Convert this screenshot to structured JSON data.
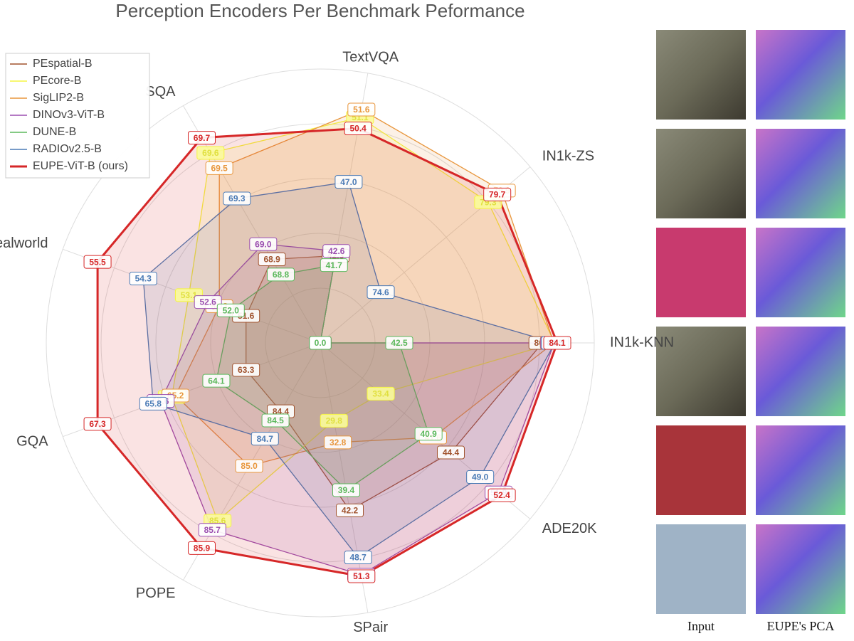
{
  "chart_data": {
    "type": "radar",
    "title": "Perception Encoders Per Benchmark Peformance",
    "legend": "top-left",
    "categories": [
      "TextVQA",
      "IN1k-ZS",
      "IN1k-KNN",
      "ADE20K",
      "SPair",
      "POPE",
      "GQA",
      "Realworld",
      "SQA"
    ],
    "series": [
      {
        "name": "PEspatial-B",
        "color": "#a0522d",
        "values": [
          42.3,
          0,
          80.2,
          44.4,
          42.2,
          84.4,
          63.3,
          51.6,
          68.9
        ],
        "value_labels": [
          "42.3",
          "0.0",
          "80.2",
          "44.4",
          "42.2",
          "84.4",
          "63.3",
          "51.6",
          "68.9"
        ]
      },
      {
        "name": "PEcore-B",
        "color": "#f5f542",
        "values": [
          51.1,
          79.3,
          83.4,
          33.4,
          29.8,
          85.6,
          65.3,
          53.1,
          69.6
        ],
        "value_labels": [
          "51.1",
          "79.3",
          "83.4",
          "33.4",
          "29.8",
          "85.6",
          "65.3",
          "53.1",
          "69.6"
        ]
      },
      {
        "name": "SigLIP2-B",
        "color": "#e8963c",
        "values": [
          51.6,
          79.9,
          83.2,
          41.6,
          32.8,
          85.0,
          65.2,
          52.3,
          69.5
        ],
        "value_labels": [
          "51.6",
          "79.9",
          "83.2",
          "41.6",
          "32.8",
          "85.0",
          "65.2",
          "52.3",
          "69.5"
        ]
      },
      {
        "name": "DINOv3-ViT-B",
        "color": "#9b4fb0",
        "values": [
          42.6,
          0,
          83.3,
          51.9,
          51.1,
          85.7,
          65.6,
          52.6,
          69.0
        ],
        "value_labels": [
          "42.6",
          "0.0",
          "83.3",
          "51.9",
          "51.1",
          "85.7",
          "65.6",
          "52.6",
          "69.0"
        ]
      },
      {
        "name": "DUNE-B",
        "color": "#5cb85c",
        "values": [
          41.7,
          0,
          42.5,
          40.9,
          39.4,
          84.5,
          64.1,
          52.0,
          68.8
        ],
        "value_labels": [
          "41.7",
          "0.0",
          "42.5",
          "40.9",
          "39.4",
          "84.5",
          "64.1",
          "52.0",
          "68.8"
        ]
      },
      {
        "name": "RADIOv2.5-B",
        "color": "#4a7ab5",
        "values": [
          47.0,
          74.6,
          83.5,
          49.0,
          48.7,
          84.7,
          65.8,
          54.3,
          69.3
        ],
        "value_labels": [
          "47.0",
          "74.6",
          "83.5",
          "49.0",
          "48.7",
          "84.7",
          "65.8",
          "54.3",
          "69.3"
        ]
      },
      {
        "name": "EUPE-ViT-B (ours)",
        "color": "#d62728",
        "values": [
          50.4,
          79.7,
          84.1,
          52.4,
          51.3,
          85.9,
          67.3,
          55.5,
          69.7
        ],
        "value_labels": [
          "50.4",
          "79.7",
          "84.1",
          "52.4",
          "51.3",
          "85.9",
          "67.3",
          "55.5",
          "69.7"
        ]
      }
    ]
  },
  "image_panel": {
    "captions": [
      "Input",
      "EUPE's PCA"
    ]
  }
}
